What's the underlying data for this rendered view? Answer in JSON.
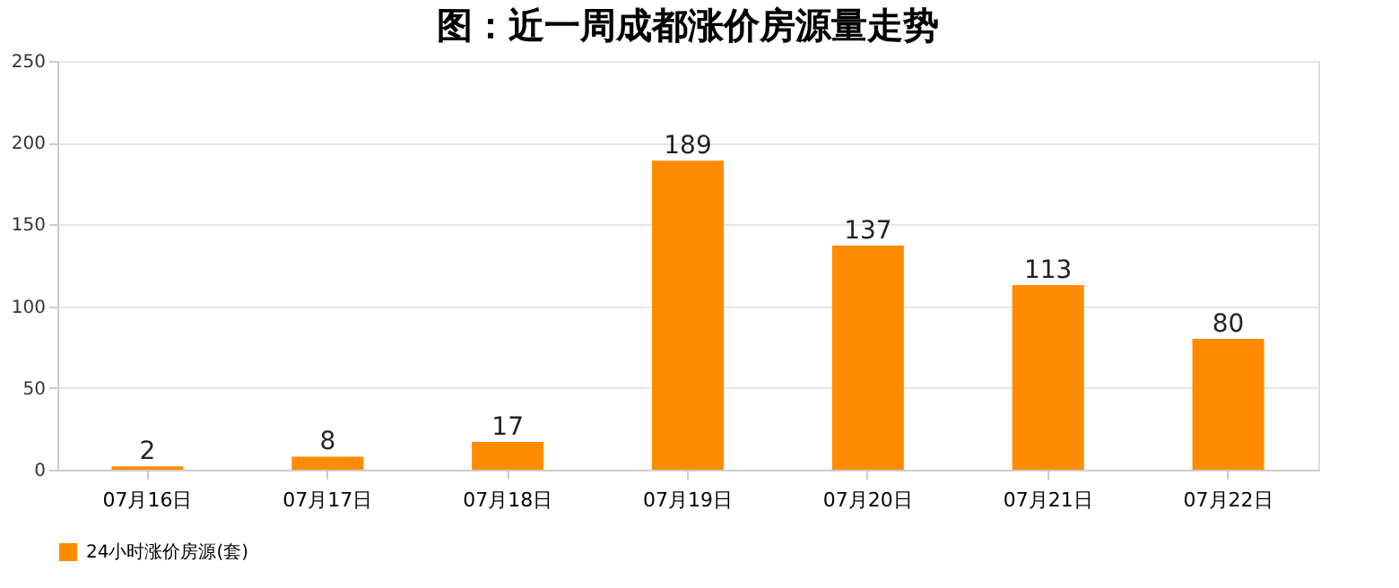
{
  "chart_data": {
    "type": "bar",
    "title": "图：近一周成都涨价房源量走势",
    "categories": [
      "07月16日",
      "07月17日",
      "07月18日",
      "07月19日",
      "07月20日",
      "07月21日",
      "07月22日"
    ],
    "series": [
      {
        "name": "24小时涨价房源(套)",
        "color": "#ff8c00",
        "values": [
          2,
          8,
          17,
          189,
          137,
          113,
          80
        ]
      }
    ],
    "ylim": [
      0,
      250
    ],
    "yticks": [
      0,
      50,
      100,
      150,
      200,
      250
    ],
    "grid": "y",
    "legend": "bottom",
    "data_labels": true
  }
}
